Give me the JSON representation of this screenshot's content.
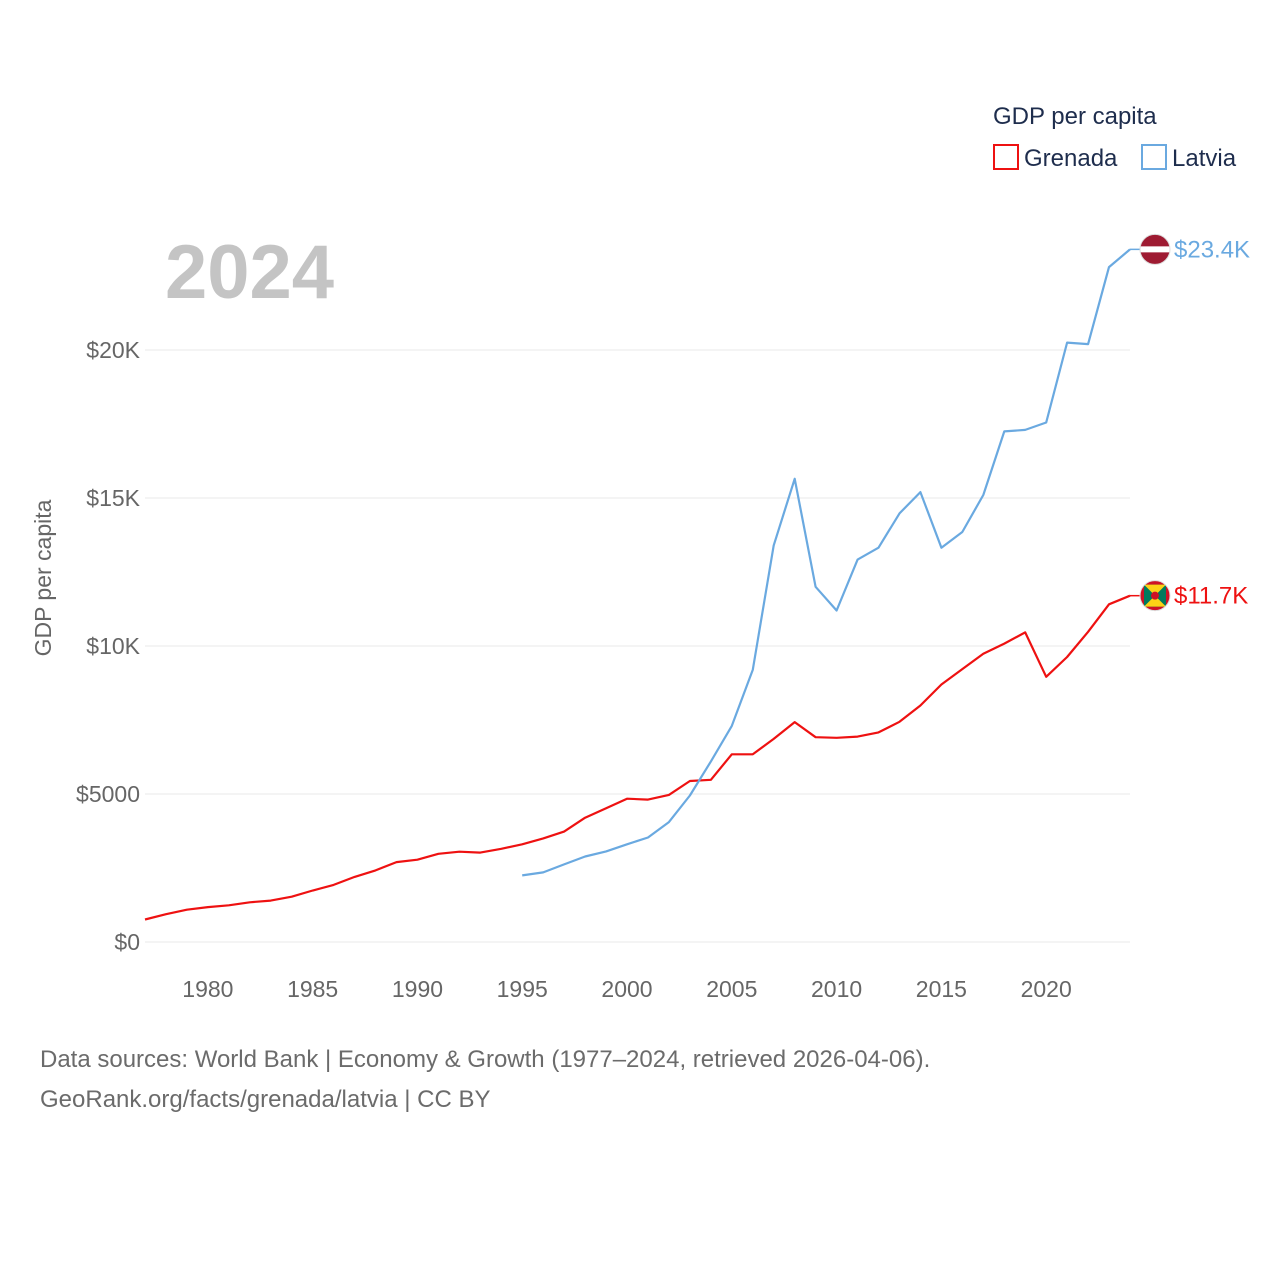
{
  "chart_data": {
    "type": "line",
    "title": "GDP per capita",
    "year_label": "2024",
    "ylabel": "GDP per capita",
    "xlabel": "",
    "xlim": [
      1977,
      2024
    ],
    "ylim": [
      0,
      25000
    ],
    "y_ticks": [
      {
        "value": 0,
        "label": "$0"
      },
      {
        "value": 5000,
        "label": "$5000"
      },
      {
        "value": 10000,
        "label": "$10K"
      },
      {
        "value": 15000,
        "label": "$15K"
      },
      {
        "value": 20000,
        "label": "$20K"
      }
    ],
    "x_ticks": [
      {
        "value": 1980,
        "label": "1980"
      },
      {
        "value": 1985,
        "label": "1985"
      },
      {
        "value": 1990,
        "label": "1990"
      },
      {
        "value": 1995,
        "label": "1995"
      },
      {
        "value": 2000,
        "label": "2000"
      },
      {
        "value": 2005,
        "label": "2005"
      },
      {
        "value": 2010,
        "label": "2010"
      },
      {
        "value": 2015,
        "label": "2015"
      },
      {
        "value": 2020,
        "label": "2020"
      }
    ],
    "legend": {
      "title": "GDP per capita",
      "position": "top-right"
    },
    "series": [
      {
        "name": "Grenada",
        "color": "#ee1111",
        "end_label": "$11.7K",
        "flag": "grenada-flag",
        "x": [
          1977,
          1978,
          1979,
          1980,
          1981,
          1982,
          1983,
          1984,
          1985,
          1986,
          1987,
          1988,
          1989,
          1990,
          1991,
          1992,
          1993,
          1994,
          1995,
          1996,
          1997,
          1998,
          1999,
          2000,
          2001,
          2002,
          2003,
          2004,
          2005,
          2006,
          2007,
          2008,
          2009,
          2010,
          2011,
          2012,
          2013,
          2014,
          2015,
          2016,
          2017,
          2018,
          2019,
          2020,
          2021,
          2022,
          2023,
          2024
        ],
        "values": [
          760,
          940,
          1090,
          1180,
          1240,
          1340,
          1400,
          1530,
          1740,
          1930,
          2200,
          2420,
          2700,
          2780,
          2980,
          3050,
          3020,
          3150,
          3300,
          3500,
          3730,
          4200,
          4520,
          4840,
          4810,
          4970,
          5440,
          5480,
          6340,
          6340,
          6860,
          7430,
          6920,
          6900,
          6940,
          7080,
          7440,
          7990,
          8700,
          9220,
          9740,
          10080,
          10460,
          8960,
          9630,
          10480,
          11410,
          11700
        ]
      },
      {
        "name": "Latvia",
        "color": "#6aa9e0",
        "end_label": "$23.4K",
        "flag": "latvia-flag",
        "x": [
          1995,
          1996,
          1997,
          1998,
          1999,
          2000,
          2001,
          2002,
          2003,
          2004,
          2005,
          2006,
          2007,
          2008,
          2009,
          2010,
          2011,
          2012,
          2013,
          2014,
          2015,
          2016,
          2017,
          2018,
          2019,
          2020,
          2021,
          2022,
          2023,
          2024
        ],
        "values": [
          2250,
          2350,
          2620,
          2890,
          3060,
          3300,
          3530,
          4050,
          4950,
          6100,
          7300,
          9200,
          13400,
          15650,
          12000,
          11200,
          12920,
          13320,
          14480,
          15200,
          13320,
          13850,
          15100,
          17250,
          17300,
          17550,
          20250,
          20200,
          22800,
          23400
        ]
      }
    ]
  },
  "footer": {
    "line1": "Data sources: World Bank | Economy & Growth (1977–2024, retrieved 2026-04-06).",
    "line2": "GeoRank.org/facts/grenada/latvia | CC BY"
  }
}
